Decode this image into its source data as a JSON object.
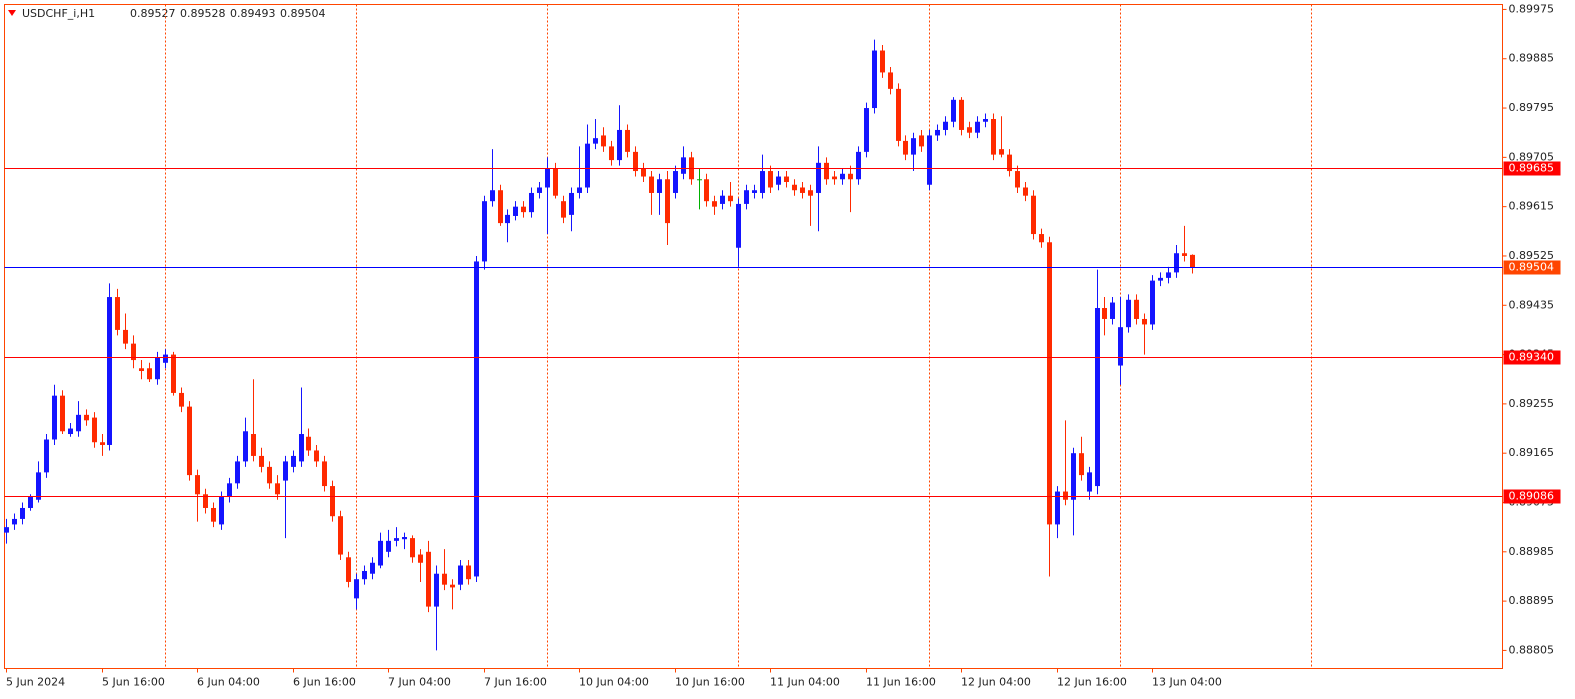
{
  "chart_data": {
    "type": "candlestick",
    "symbol": "USDCHF_i,H1",
    "bull_color": "#1414ff",
    "bear_color": "#ff2a00",
    "doji_color": "#00b000",
    "ylim": [
      0.88772,
      0.89984
    ],
    "yticks": [
      0.89975,
      0.89885,
      0.89795,
      0.89705,
      0.89615,
      0.89525,
      0.89435,
      0.89345,
      0.89255,
      0.89165,
      0.89075,
      0.88985,
      0.88895,
      0.88805
    ],
    "levels": [
      {
        "value": 0.89685,
        "color": "#ff0000",
        "box": "#ff0000"
      },
      {
        "value": 0.89504,
        "color": "#0000ff",
        "box": "#ff4500"
      },
      {
        "value": 0.8934,
        "label": "0.89340",
        "color": "#ff0000",
        "box": "#ff0000"
      },
      {
        "value": 0.89086,
        "color": "#ff0000",
        "box": "#ff0000"
      }
    ],
    "categories": [
      "5 Jun 2024",
      null,
      null,
      null,
      null,
      null,
      null,
      null,
      null,
      null,
      null,
      null,
      "5 Jun 16:00",
      null,
      null,
      null,
      null,
      null,
      null,
      null,
      null,
      null,
      null,
      null,
      "6 Jun 04:00",
      null,
      null,
      null,
      null,
      null,
      null,
      null,
      null,
      null,
      null,
      null,
      "6 Jun 16:00",
      null,
      null,
      null,
      null,
      null,
      null,
      null,
      null,
      null,
      null,
      null,
      "7 Jun 04:00",
      null,
      null,
      null,
      null,
      null,
      null,
      null,
      null,
      null,
      null,
      null,
      "7 Jun 16:00",
      null,
      null,
      null,
      null,
      null,
      null,
      null,
      null,
      null,
      null,
      null,
      "10 Jun 04:00",
      null,
      null,
      null,
      null,
      null,
      null,
      null,
      null,
      null,
      null,
      null,
      "10 Jun 16:00",
      null,
      null,
      null,
      null,
      null,
      null,
      null,
      null,
      null,
      null,
      null,
      "11 Jun 04:00",
      null,
      null,
      null,
      null,
      null,
      null,
      null,
      null,
      null,
      null,
      null,
      "11 Jun 16:00",
      null,
      null,
      null,
      null,
      null,
      null,
      null,
      null,
      null,
      null,
      null,
      "12 Jun 04:00",
      null,
      null,
      null,
      null,
      null,
      null,
      null,
      null,
      null,
      null,
      null,
      "12 Jun 16:00",
      null,
      null,
      null,
      null,
      null,
      null,
      null,
      null,
      null,
      null,
      null,
      "13 Jun 04:00",
      null,
      null,
      null,
      null,
      null
    ],
    "ohlc": [
      [
        0.8902,
        0.89045,
        0.89,
        0.8903
      ],
      [
        0.89035,
        0.89055,
        0.89025,
        0.89045
      ],
      [
        0.89045,
        0.89075,
        0.89035,
        0.89065
      ],
      [
        0.89065,
        0.8909,
        0.8906,
        0.89085
      ],
      [
        0.8908,
        0.8915,
        0.89075,
        0.8913
      ],
      [
        0.8913,
        0.892,
        0.8912,
        0.8919
      ],
      [
        0.8919,
        0.8929,
        0.8918,
        0.8927
      ],
      [
        0.8927,
        0.8928,
        0.892,
        0.89205
      ],
      [
        0.892,
        0.8922,
        0.89195,
        0.8921
      ],
      [
        0.89205,
        0.8926,
        0.89195,
        0.89235
      ],
      [
        0.89235,
        0.89245,
        0.89215,
        0.89225
      ],
      [
        0.8923,
        0.8924,
        0.89175,
        0.89185
      ],
      [
        0.89185,
        0.892,
        0.8916,
        0.8918
      ],
      [
        0.8918,
        0.89475,
        0.8917,
        0.8945
      ],
      [
        0.8945,
        0.89465,
        0.8938,
        0.8939
      ],
      [
        0.8939,
        0.8942,
        0.89355,
        0.89365
      ],
      [
        0.89365,
        0.8938,
        0.8932,
        0.89335
      ],
      [
        0.8932,
        0.89335,
        0.893,
        0.89315
      ],
      [
        0.8932,
        0.8933,
        0.89295,
        0.893
      ],
      [
        0.893,
        0.8935,
        0.8929,
        0.8934
      ],
      [
        0.8933,
        0.89355,
        0.8932,
        0.89345
      ],
      [
        0.89345,
        0.8935,
        0.8927,
        0.89275
      ],
      [
        0.89275,
        0.89285,
        0.8924,
        0.8925
      ],
      [
        0.8925,
        0.8926,
        0.89115,
        0.89125
      ],
      [
        0.89125,
        0.89135,
        0.8904,
        0.8909
      ],
      [
        0.8909,
        0.891,
        0.89055,
        0.89065
      ],
      [
        0.89065,
        0.89075,
        0.8903,
        0.8904
      ],
      [
        0.89035,
        0.89095,
        0.89025,
        0.89085
      ],
      [
        0.89085,
        0.8912,
        0.89075,
        0.8911
      ],
      [
        0.8911,
        0.8916,
        0.891,
        0.8915
      ],
      [
        0.8915,
        0.8923,
        0.8914,
        0.89205
      ],
      [
        0.892,
        0.893,
        0.8915,
        0.8916
      ],
      [
        0.8916,
        0.89175,
        0.8913,
        0.8914
      ],
      [
        0.8914,
        0.8915,
        0.891,
        0.8911
      ],
      [
        0.8911,
        0.89125,
        0.8908,
        0.8909
      ],
      [
        0.89115,
        0.8916,
        0.8901,
        0.8915
      ],
      [
        0.8914,
        0.8917,
        0.8913,
        0.8916
      ],
      [
        0.8915,
        0.89285,
        0.8914,
        0.892
      ],
      [
        0.89195,
        0.8921,
        0.8916,
        0.8917
      ],
      [
        0.8917,
        0.8918,
        0.8914,
        0.8915
      ],
      [
        0.8915,
        0.8916,
        0.89095,
        0.89105
      ],
      [
        0.89105,
        0.89115,
        0.8904,
        0.8905
      ],
      [
        0.8905,
        0.8906,
        0.8897,
        0.8898
      ],
      [
        0.88975,
        0.88985,
        0.8892,
        0.8893
      ],
      [
        0.889,
        0.88945,
        0.8888,
        0.88935
      ],
      [
        0.88935,
        0.8896,
        0.88925,
        0.8895
      ],
      [
        0.88945,
        0.88975,
        0.88935,
        0.88965
      ],
      [
        0.8896,
        0.8902,
        0.88955,
        0.89005
      ],
      [
        0.88985,
        0.89025,
        0.88975,
        0.89005
      ],
      [
        0.89005,
        0.8903,
        0.88995,
        0.8901
      ],
      [
        0.89008,
        0.8902,
        0.8899,
        0.89012
      ],
      [
        0.8901,
        0.89015,
        0.88965,
        0.88975
      ],
      [
        0.8898,
        0.8899,
        0.8893,
        0.88965
      ],
      [
        0.88985,
        0.89005,
        0.88875,
        0.88885
      ],
      [
        0.88885,
        0.8896,
        0.88805,
        0.88945
      ],
      [
        0.88945,
        0.8899,
        0.88915,
        0.88925
      ],
      [
        0.88925,
        0.88935,
        0.8888,
        0.8892
      ],
      [
        0.88925,
        0.8897,
        0.88915,
        0.8896
      ],
      [
        0.8896,
        0.8897,
        0.88925,
        0.88935
      ],
      [
        0.8894,
        0.89525,
        0.8893,
        0.89515
      ],
      [
        0.89515,
        0.89635,
        0.895,
        0.89625
      ],
      [
        0.89625,
        0.8972,
        0.89615,
        0.89645
      ],
      [
        0.89645,
        0.89655,
        0.8958,
        0.89585
      ],
      [
        0.89585,
        0.8961,
        0.8955,
        0.896
      ],
      [
        0.89598,
        0.89625,
        0.8959,
        0.89615
      ],
      [
        0.89615,
        0.89625,
        0.89595,
        0.89605
      ],
      [
        0.89605,
        0.8965,
        0.89595,
        0.8964
      ],
      [
        0.8964,
        0.8966,
        0.8963,
        0.8965
      ],
      [
        0.8965,
        0.89705,
        0.89565,
        0.89685
      ],
      [
        0.89685,
        0.89695,
        0.8963,
        0.89635
      ],
      [
        0.89625,
        0.89635,
        0.89585,
        0.89595
      ],
      [
        0.896,
        0.8965,
        0.8957,
        0.8964
      ],
      [
        0.8964,
        0.89725,
        0.8963,
        0.8965
      ],
      [
        0.8965,
        0.89765,
        0.8964,
        0.8973
      ],
      [
        0.8973,
        0.89775,
        0.8972,
        0.8974
      ],
      [
        0.89745,
        0.8976,
        0.89715,
        0.89725
      ],
      [
        0.89725,
        0.89735,
        0.8969,
        0.897
      ],
      [
        0.897,
        0.898,
        0.8969,
        0.89755
      ],
      [
        0.89755,
        0.89765,
        0.89705,
        0.89715
      ],
      [
        0.89715,
        0.89725,
        0.8967,
        0.8968
      ],
      [
        0.89685,
        0.89695,
        0.8966,
        0.8967
      ],
      [
        0.8967,
        0.8968,
        0.896,
        0.8964
      ],
      [
        0.8964,
        0.89675,
        0.896,
        0.89665
      ],
      [
        0.89665,
        0.8968,
        0.89545,
        0.89585
      ],
      [
        0.8964,
        0.8969,
        0.8963,
        0.8968
      ],
      [
        0.89675,
        0.89725,
        0.89665,
        0.89705
      ],
      [
        0.89705,
        0.89715,
        0.89655,
        0.89665
      ],
      [
        0.89665,
        0.89685,
        0.8961,
        0.89665
      ],
      [
        0.89665,
        0.89675,
        0.89615,
        0.89625
      ],
      [
        0.89625,
        0.89635,
        0.896,
        0.89615
      ],
      [
        0.8962,
        0.89645,
        0.8961,
        0.89635
      ],
      [
        0.89635,
        0.8966,
        0.89615,
        0.89625
      ],
      [
        0.8954,
        0.8963,
        0.89505,
        0.8962
      ],
      [
        0.8962,
        0.89655,
        0.8961,
        0.89645
      ],
      [
        0.8964,
        0.89655,
        0.8963,
        0.89645
      ],
      [
        0.8964,
        0.8971,
        0.8963,
        0.8968
      ],
      [
        0.8968,
        0.8969,
        0.8964,
        0.8965
      ],
      [
        0.89655,
        0.8968,
        0.89645,
        0.8967
      ],
      [
        0.8967,
        0.8968,
        0.8965,
        0.8966
      ],
      [
        0.89655,
        0.89665,
        0.89635,
        0.89645
      ],
      [
        0.8965,
        0.8966,
        0.8963,
        0.8964
      ],
      [
        0.89645,
        0.89655,
        0.8958,
        0.89635
      ],
      [
        0.8964,
        0.89725,
        0.8957,
        0.89695
      ],
      [
        0.89695,
        0.89705,
        0.89655,
        0.89665
      ],
      [
        0.8967,
        0.8968,
        0.89655,
        0.89665
      ],
      [
        0.89665,
        0.89685,
        0.89655,
        0.89675
      ],
      [
        0.89675,
        0.8969,
        0.89605,
        0.89665
      ],
      [
        0.89665,
        0.89725,
        0.89655,
        0.89715
      ],
      [
        0.89715,
        0.89805,
        0.89705,
        0.89795
      ],
      [
        0.89795,
        0.8992,
        0.89785,
        0.899
      ],
      [
        0.899,
        0.8991,
        0.8985,
        0.8986
      ],
      [
        0.8986,
        0.8987,
        0.8982,
        0.8983
      ],
      [
        0.8983,
        0.8984,
        0.89725,
        0.89735
      ],
      [
        0.89735,
        0.89745,
        0.897,
        0.8971
      ],
      [
        0.8971,
        0.8975,
        0.8968,
        0.8974
      ],
      [
        0.89745,
        0.89755,
        0.89715,
        0.89725
      ],
      [
        0.89655,
        0.89755,
        0.89645,
        0.89745
      ],
      [
        0.89745,
        0.89765,
        0.89735,
        0.89755
      ],
      [
        0.89755,
        0.8978,
        0.89745,
        0.8977
      ],
      [
        0.8977,
        0.89815,
        0.8976,
        0.8981
      ],
      [
        0.8981,
        0.89815,
        0.89745,
        0.89755
      ],
      [
        0.8976,
        0.8977,
        0.8974,
        0.8975
      ],
      [
        0.8975,
        0.8978,
        0.8974,
        0.8977
      ],
      [
        0.8977,
        0.89785,
        0.8976,
        0.89775
      ],
      [
        0.89775,
        0.89785,
        0.897,
        0.8971
      ],
      [
        0.8972,
        0.8978,
        0.89705,
        0.8971
      ],
      [
        0.8971,
        0.8972,
        0.8967,
        0.8968
      ],
      [
        0.8968,
        0.8969,
        0.8964,
        0.8965
      ],
      [
        0.8965,
        0.8966,
        0.89625,
        0.89635
      ],
      [
        0.89635,
        0.89645,
        0.89555,
        0.89565
      ],
      [
        0.89565,
        0.89575,
        0.8954,
        0.8955
      ],
      [
        0.8955,
        0.8956,
        0.8894,
        0.89035
      ],
      [
        0.89035,
        0.89105,
        0.8901,
        0.89095
      ],
      [
        0.89095,
        0.89225,
        0.8907,
        0.8908
      ],
      [
        0.8908,
        0.89175,
        0.89015,
        0.89165
      ],
      [
        0.89165,
        0.89195,
        0.89115,
        0.89125
      ],
      [
        0.89095,
        0.8914,
        0.8908,
        0.8913
      ],
      [
        0.89105,
        0.895,
        0.8909,
        0.8943
      ],
      [
        0.8943,
        0.8945,
        0.8938,
        0.8941
      ],
      [
        0.8941,
        0.8945,
        0.894,
        0.8944
      ],
      [
        0.89325,
        0.8945,
        0.8929,
        0.89395
      ],
      [
        0.89395,
        0.89455,
        0.89385,
        0.89445
      ],
      [
        0.89445,
        0.89455,
        0.894,
        0.8941
      ],
      [
        0.8941,
        0.8942,
        0.89345,
        0.894
      ],
      [
        0.894,
        0.8949,
        0.8939,
        0.8948
      ],
      [
        0.8948,
        0.89495,
        0.8947,
        0.89485
      ],
      [
        0.89485,
        0.89505,
        0.89475,
        0.89495
      ],
      [
        0.89495,
        0.89545,
        0.89485,
        0.8953
      ],
      [
        0.8953,
        0.8958,
        0.89515,
        0.89525
      ],
      [
        0.89527,
        0.89528,
        0.89493,
        0.89504
      ]
    ]
  }
}
